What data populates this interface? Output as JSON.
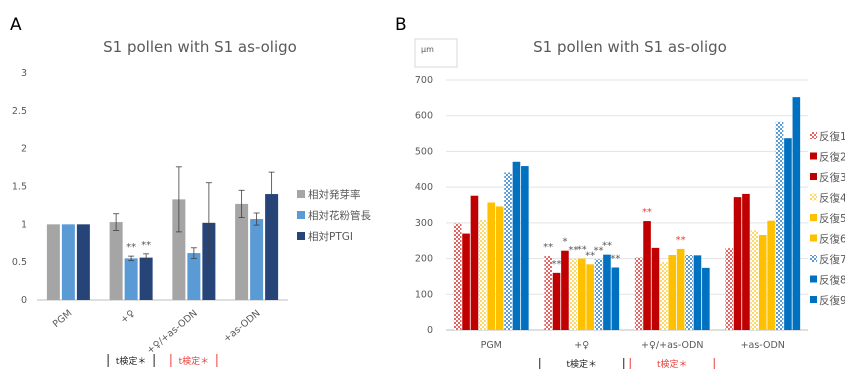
{
  "colors": {
    "axis": "#bfbfbf",
    "grid": "#e3e3e3",
    "text": "#595959",
    "sig_black": "#595959",
    "sig_red": "#e8413c",
    "test_black": "#222222",
    "test_red": "#e8413c",
    "hatch_bg": "#ffffff"
  },
  "chart_data": [
    {
      "panel": "A",
      "type": "bar",
      "title": "S1 pollen with S1 as-oligo",
      "categories": [
        "PGM",
        "+♀",
        "+♀/+as-ODN",
        "+as-ODN"
      ],
      "ylim": [
        0,
        3
      ],
      "yticks": [
        "0",
        "0.5",
        "1",
        "1.5",
        "2",
        "2.5",
        "3"
      ],
      "grid": false,
      "legend_position": "right",
      "series": [
        {
          "name": "相対発芽率",
          "color": "#a5a5a5",
          "values": [
            1.0,
            1.03,
            1.33,
            1.27
          ],
          "err": [
            0,
            0.11,
            0.43,
            0.18
          ]
        },
        {
          "name": "相対花粉管長",
          "color": "#5b9bd5",
          "values": [
            1.0,
            0.55,
            0.62,
            1.07
          ],
          "err": [
            0,
            0.03,
            0.07,
            0.08
          ]
        },
        {
          "name": "相対PTGI",
          "color": "#264478",
          "values": [
            1.0,
            0.56,
            1.02,
            1.4
          ],
          "err": [
            0,
            0.05,
            0.53,
            0.29
          ]
        }
      ],
      "annotations": [
        {
          "text": "**",
          "category": 1,
          "series": 1,
          "color": "#595959"
        },
        {
          "text": "**",
          "category": 1,
          "series": 2,
          "color": "#595959"
        }
      ],
      "test_labels": [
        {
          "text": "t検定＊",
          "category": 1,
          "color": "#222222"
        },
        {
          "text": "t検定＊",
          "category": 2,
          "color": "#e8413c"
        }
      ]
    },
    {
      "panel": "B",
      "type": "bar",
      "title": "S1 pollen with S1 as-oligo",
      "unit_label": "μm",
      "categories": [
        "PGM",
        "+♀",
        "+♀/+as-ODN",
        "+as-ODN"
      ],
      "ylim": [
        0,
        700
      ],
      "yticks": [
        "0",
        "100",
        "200",
        "300",
        "400",
        "500",
        "600",
        "700"
      ],
      "grid": true,
      "legend_position": "right",
      "series": [
        {
          "name": "反復1",
          "color": "#e06666",
          "pattern": "hatch",
          "values": [
            298,
            207,
            203,
            229
          ]
        },
        {
          "name": "反復2",
          "color": "#c00000",
          "pattern": "solid",
          "values": [
            270,
            160,
            305,
            372
          ]
        },
        {
          "name": "反復3",
          "color": "#c00000",
          "pattern": "solid",
          "values": [
            376,
            222,
            230,
            381
          ]
        },
        {
          "name": "反復4",
          "color": "#ffd966",
          "pattern": "hatch",
          "values": [
            308,
            199,
            190,
            279
          ]
        },
        {
          "name": "反復5",
          "color": "#ffc000",
          "pattern": "solid",
          "values": [
            357,
            200,
            210,
            266
          ]
        },
        {
          "name": "反復6",
          "color": "#ffc000",
          "pattern": "solid",
          "values": [
            346,
            184,
            227,
            306
          ]
        },
        {
          "name": "反復7",
          "color": "#5b9bd5",
          "pattern": "hatch",
          "values": [
            441,
            198,
            210,
            583
          ]
        },
        {
          "name": "反復8",
          "color": "#0070c0",
          "pattern": "solid",
          "values": [
            471,
            211,
            209,
            537
          ]
        },
        {
          "name": "反復9",
          "color": "#0070c0",
          "pattern": "solid",
          "values": [
            459,
            175,
            174,
            652
          ]
        }
      ],
      "annotations": [
        {
          "text": "**",
          "category": 1,
          "series": 0,
          "color": "#595959"
        },
        {
          "text": "**",
          "category": 1,
          "series": 1,
          "color": "#595959"
        },
        {
          "text": "*",
          "category": 1,
          "series": 2,
          "color": "#595959"
        },
        {
          "text": "**",
          "category": 1,
          "series": 3,
          "color": "#595959"
        },
        {
          "text": "**",
          "category": 1,
          "series": 4,
          "color": "#595959"
        },
        {
          "text": "**",
          "category": 1,
          "series": 5,
          "color": "#595959"
        },
        {
          "text": "**",
          "category": 1,
          "series": 6,
          "color": "#595959"
        },
        {
          "text": "**",
          "category": 1,
          "series": 7,
          "color": "#595959"
        },
        {
          "text": "**",
          "category": 1,
          "series": 8,
          "color": "#595959"
        },
        {
          "text": "**",
          "category": 2,
          "series": 1,
          "color": "#e8413c"
        },
        {
          "text": "**",
          "category": 2,
          "series": 5,
          "color": "#e8413c"
        }
      ],
      "test_labels": [
        {
          "text": "t検定＊",
          "category": 1,
          "color": "#222222"
        },
        {
          "text": "t検定＊",
          "category": 2,
          "color": "#e8413c"
        }
      ]
    }
  ]
}
